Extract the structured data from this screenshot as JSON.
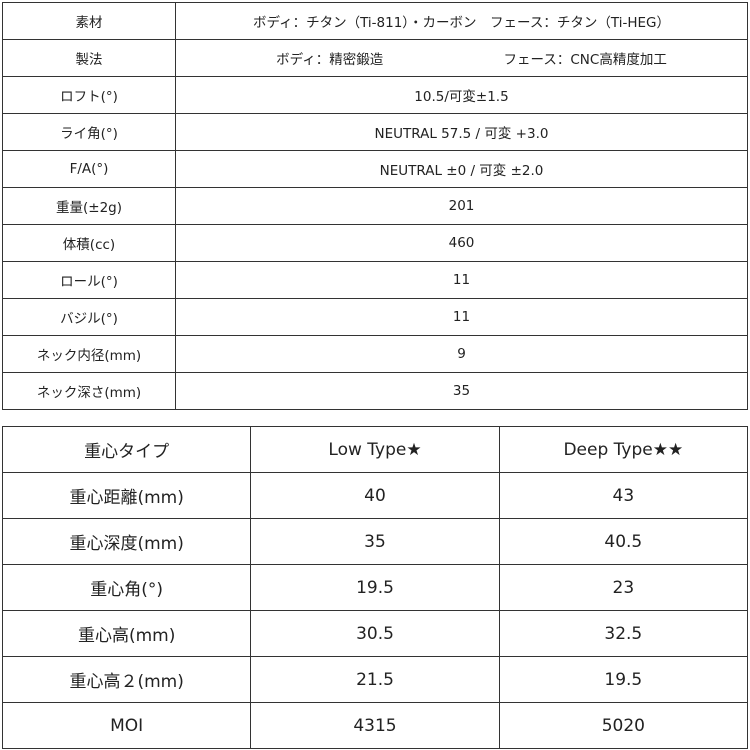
{
  "spec_table": {
    "rows": [
      {
        "label": "素材",
        "value": "ボディ：チタン（Ti-811）・カーボン　フェース：チタン（Ti-HEG）"
      },
      {
        "label": "製法",
        "value_parts": [
          "ボディ：精密鍛造",
          "フェース：CNC高精度加工"
        ]
      },
      {
        "label": "ロフト(°)",
        "value": "10.5/可変±1.5"
      },
      {
        "label": "ライ角(°)",
        "value": "NEUTRAL 57.5 / 可変 +3.0"
      },
      {
        "label": "F/A(°)",
        "value": "NEUTRAL ±0 / 可変 ±2.0"
      },
      {
        "label": "重量(±2g)",
        "value": "201"
      },
      {
        "label": "体積(cc)",
        "value": "460"
      },
      {
        "label": "ロール(°)",
        "value": "11"
      },
      {
        "label": "バジル(°)",
        "value": "11"
      },
      {
        "label": "ネック内径(mm)",
        "value": "9"
      },
      {
        "label": "ネック深さ(mm)",
        "value": "35"
      }
    ]
  },
  "cog_table": {
    "header": [
      "重心タイプ",
      "Low Type★",
      "Deep Type★★"
    ],
    "rows": [
      [
        "重心距離(mm)",
        "40",
        "43"
      ],
      [
        "重心深度(mm)",
        "35",
        "40.5"
      ],
      [
        "重心角(°)",
        "19.5",
        "23"
      ],
      [
        "重心高(mm)",
        "30.5",
        "32.5"
      ],
      [
        "重心高２(mm)",
        "21.5",
        "19.5"
      ],
      [
        "MOI",
        "4315",
        "5020"
      ]
    ]
  }
}
